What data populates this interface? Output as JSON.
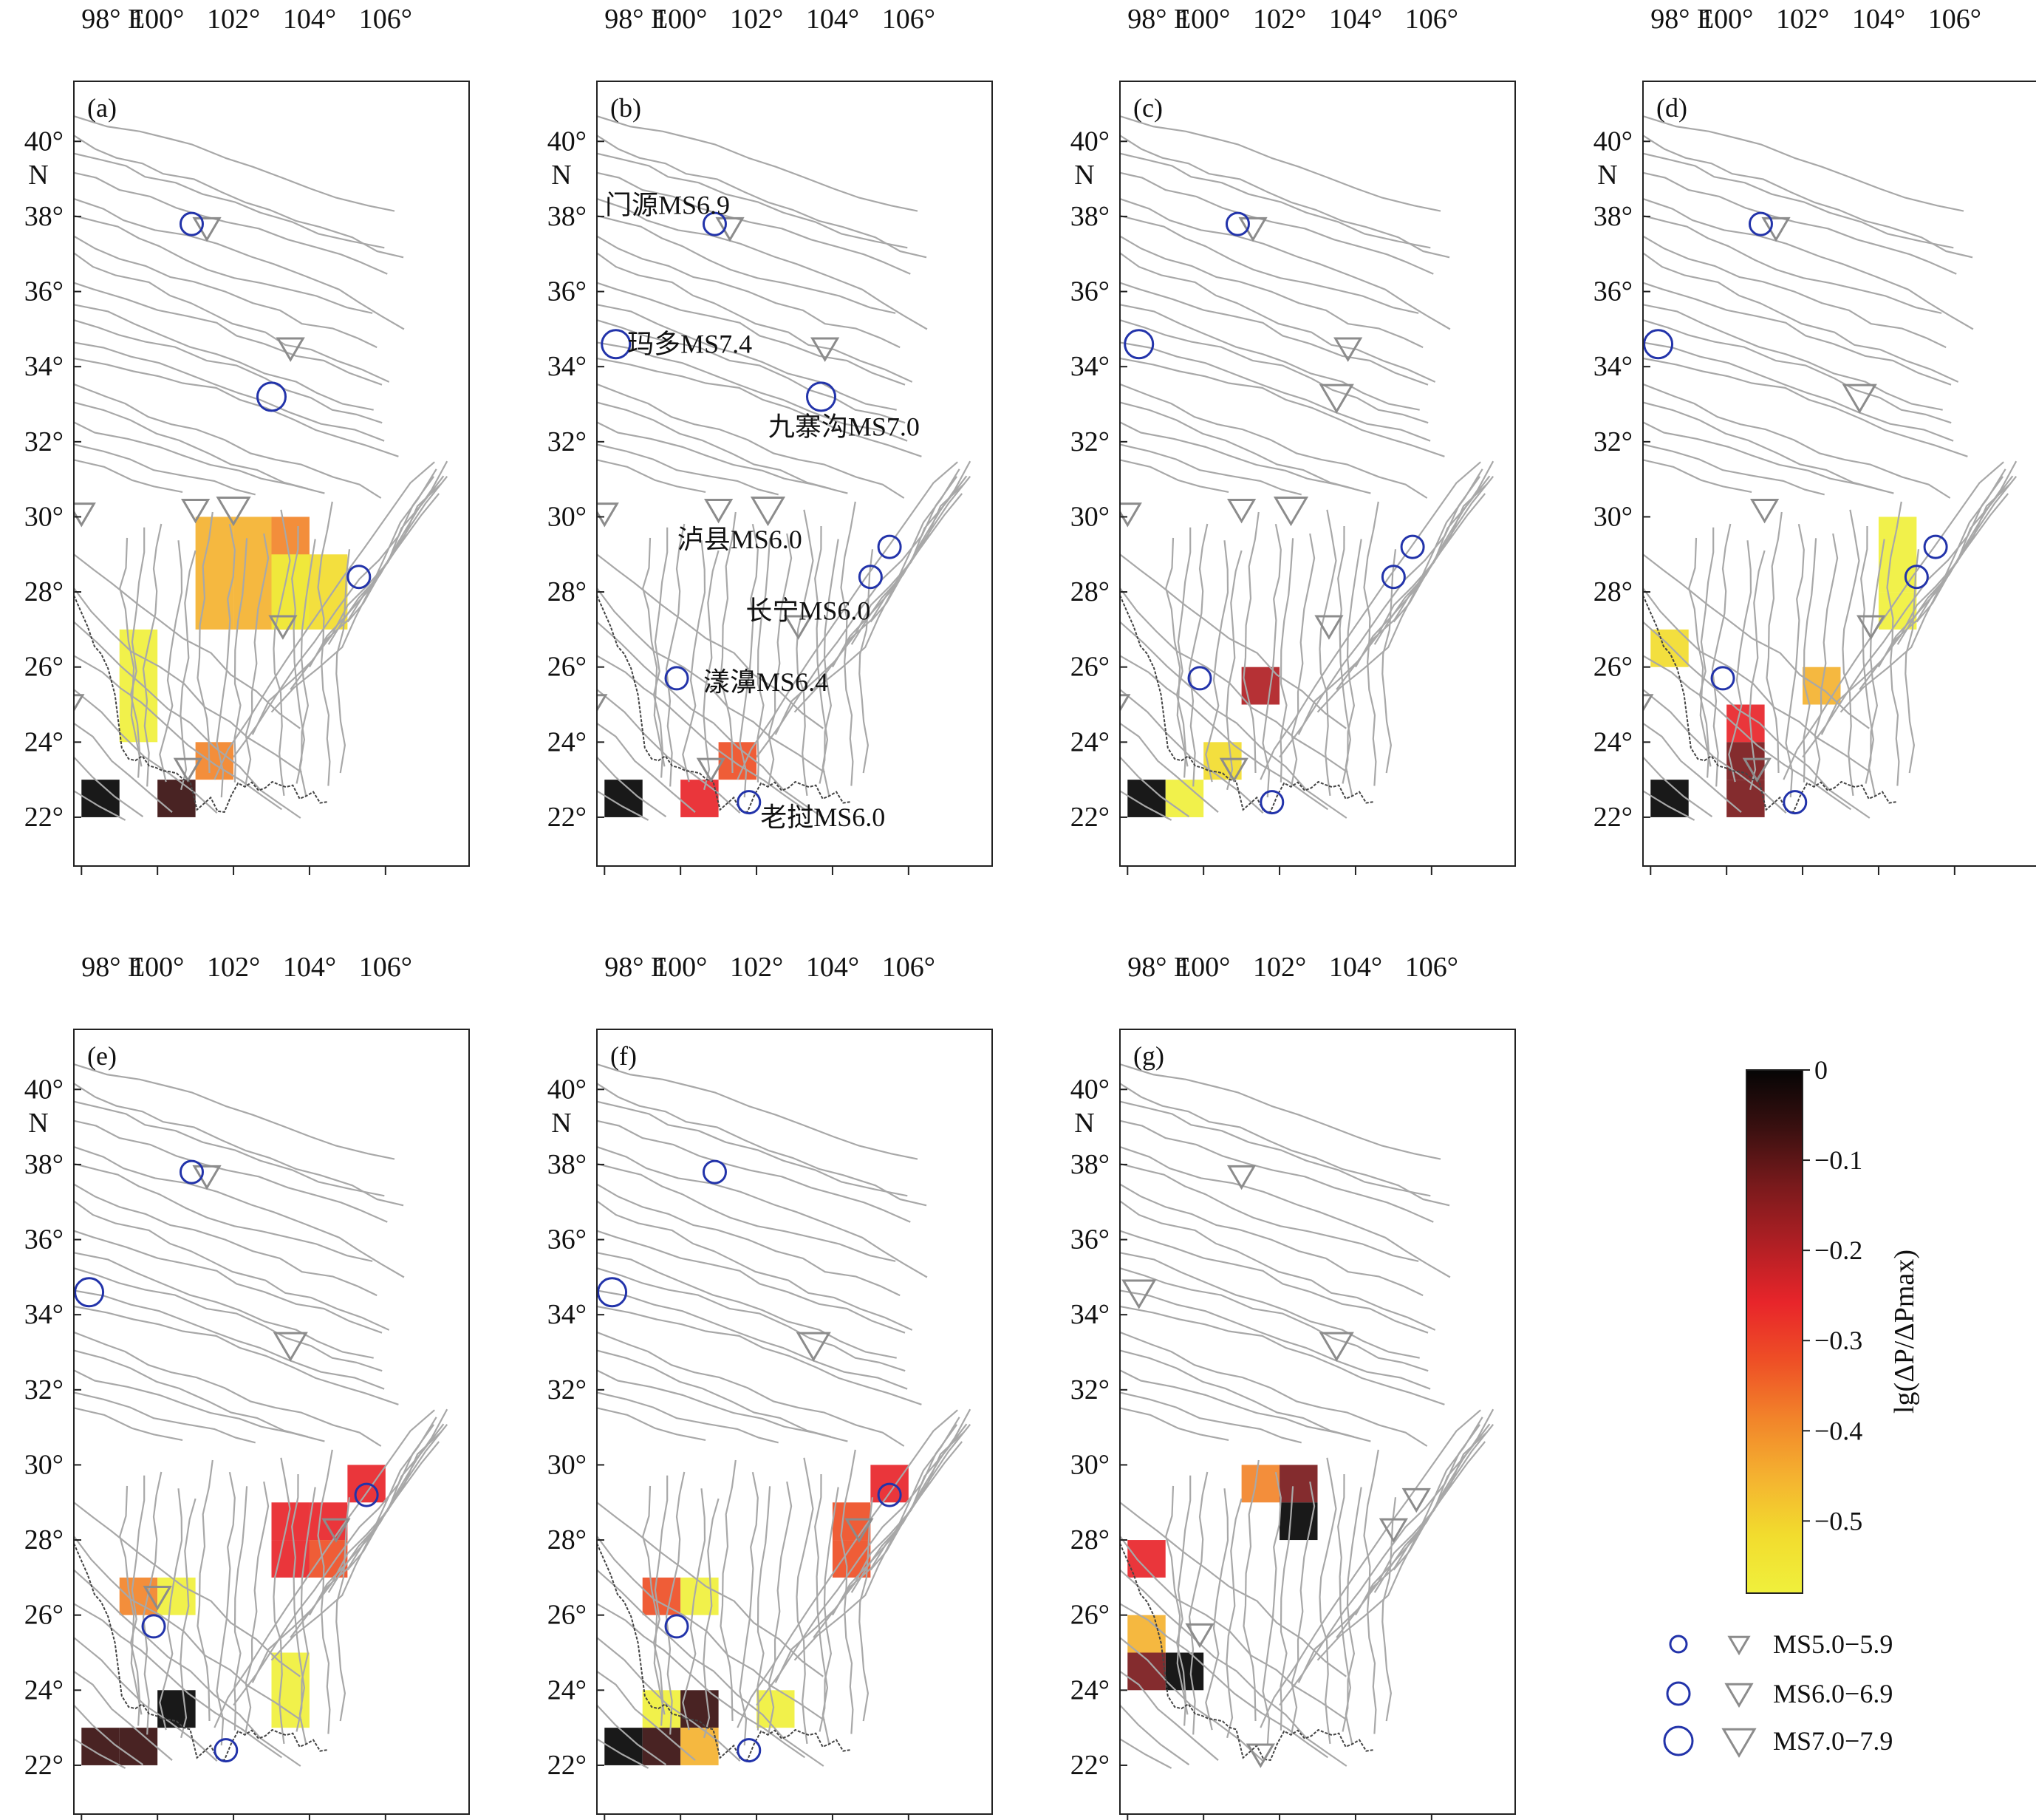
{
  "axis": {
    "lon_ticks": [
      "98° E",
      "100°",
      "102°",
      "104°",
      "106°"
    ],
    "lat_ticks": [
      "22°",
      "24°",
      "26°",
      "28°",
      "30°",
      "32°",
      "34°",
      "36°",
      "38°",
      "40°"
    ],
    "lat_unit": "N"
  },
  "colors": {
    "frame": "#222222",
    "fault": "#a8a8a8",
    "border": "#444444",
    "circle": "#2233aa",
    "triangle": "#8c8c8c",
    "colormap": [
      "#f0f03c",
      "#f2dc2e",
      "#f4b230",
      "#f2842a",
      "#ee4f26",
      "#e8252a",
      "#b01f24",
      "#7a1a1c",
      "#3a1010",
      "#050505"
    ]
  },
  "colorbar": {
    "label": "lg(ΔP/ΔPmax)",
    "ticks": [
      "0",
      "−0.1",
      "−0.2",
      "−0.3",
      "−0.4",
      "−0.5"
    ],
    "min": -0.58,
    "max": 0
  },
  "legend": {
    "rows": [
      "MS5.0−5.9",
      "MS6.0−6.9",
      "MS7.0−7.9"
    ]
  },
  "earthquake_labels": [
    "门源MS6.9",
    "玛多MS7.4",
    "九寨沟MS7.0",
    "泸县MS6.0",
    "长宁MS6.0",
    "漾濞MS6.4",
    "老挝MS6.0"
  ],
  "panels": [
    {
      "label": "(a)",
      "cells": [
        [
          103,
          27,
          29,
          -0.4
        ],
        [
          101,
          27,
          29,
          -0.45
        ],
        [
          102,
          27,
          29,
          -0.48
        ],
        [
          103,
          27,
          28,
          -0.55
        ],
        [
          104,
          27,
          28,
          -0.5
        ],
        [
          99,
          24,
          26,
          -0.55
        ],
        [
          101,
          23,
          23,
          -0.38
        ],
        [
          98,
          22,
          22,
          0
        ],
        [
          100,
          22,
          22,
          -0.08
        ]
      ],
      "circles": [
        [
          103,
          33.2,
          2
        ],
        [
          105.3,
          28.4,
          1
        ],
        [
          100.9,
          37.8,
          1
        ]
      ],
      "triangles": [
        [
          101.3,
          37.7,
          1
        ],
        [
          103.5,
          34.5,
          1
        ],
        [
          101,
          30.2,
          1
        ],
        [
          102,
          30.2,
          2
        ],
        [
          103.3,
          27.1,
          1
        ],
        [
          98,
          30.1,
          1
        ],
        [
          97.7,
          25,
          1
        ],
        [
          100.8,
          23.3,
          1
        ]
      ]
    },
    {
      "label": "(b)",
      "cells": [
        [
          101,
          23,
          23,
          -0.35
        ],
        [
          98,
          22,
          22,
          0
        ],
        [
          100,
          22,
          22,
          -0.25
        ]
      ],
      "circles": [
        [
          100.9,
          37.8,
          1
        ],
        [
          98.3,
          34.6,
          2
        ],
        [
          103.7,
          33.2,
          2
        ],
        [
          105.5,
          29.2,
          1
        ],
        [
          105,
          28.4,
          1
        ],
        [
          99.9,
          25.7,
          1
        ],
        [
          101.8,
          22.4,
          1
        ]
      ],
      "triangles": [
        [
          101.3,
          37.7,
          1
        ],
        [
          103.8,
          34.5,
          1
        ],
        [
          101,
          30.2,
          1
        ],
        [
          102.3,
          30.2,
          2
        ],
        [
          98,
          30.1,
          1
        ],
        [
          103.1,
          27.1,
          1
        ],
        [
          97.7,
          25,
          1
        ],
        [
          100.8,
          23.3,
          1
        ]
      ],
      "labels": [
        [
          0,
          101.3,
          38.3,
          "end"
        ],
        [
          1,
          98.6,
          34.6,
          "start"
        ],
        [
          2,
          104.3,
          32.4,
          "middle"
        ],
        [
          3,
          103.2,
          29.4,
          "end"
        ],
        [
          4,
          105,
          27.5,
          "end"
        ],
        [
          5,
          100.6,
          25.6,
          "start"
        ],
        [
          6,
          102.1,
          22
        ],
        "start"
      ]
    },
    {
      "label": "(c)",
      "cells": [
        [
          101,
          25,
          25,
          -0.2
        ],
        [
          100,
          23,
          23,
          -0.52
        ],
        [
          98,
          22,
          22,
          0
        ],
        [
          99,
          22,
          22,
          -0.58
        ]
      ],
      "circles": [
        [
          100.9,
          37.8,
          1
        ],
        [
          98.3,
          34.6,
          2
        ],
        [
          105.5,
          29.2,
          1
        ],
        [
          105,
          28.4,
          1
        ],
        [
          99.9,
          25.7,
          1
        ],
        [
          101.8,
          22.4,
          1
        ]
      ],
      "triangles": [
        [
          101.3,
          37.7,
          1
        ],
        [
          103.8,
          34.5,
          1
        ],
        [
          103.5,
          33.2,
          2
        ],
        [
          101,
          30.2,
          1
        ],
        [
          102.3,
          30.2,
          2
        ],
        [
          98,
          30.1,
          1
        ],
        [
          103.3,
          27.1,
          1
        ],
        [
          97.7,
          25,
          1
        ],
        [
          100.8,
          23.3,
          1
        ]
      ]
    },
    {
      "label": "(d)",
      "cells": [
        [
          104,
          28,
          29,
          -0.55
        ],
        [
          104,
          27,
          27,
          -0.58
        ],
        [
          98,
          26,
          26,
          -0.52
        ],
        [
          102,
          25,
          25,
          -0.45
        ],
        [
          100,
          24,
          24,
          -0.25
        ],
        [
          100,
          23,
          23,
          -0.15
        ],
        [
          98,
          22,
          22,
          0
        ],
        [
          100,
          22,
          22,
          -0.1
        ]
      ],
      "circles": [
        [
          100.9,
          37.8,
          1
        ],
        [
          98.2,
          34.6,
          2
        ],
        [
          105.5,
          29.2,
          1
        ],
        [
          105,
          28.4,
          1
        ],
        [
          99.9,
          25.7,
          1
        ],
        [
          101.8,
          22.4,
          1
        ]
      ],
      "triangles": [
        [
          101.3,
          37.7,
          1
        ],
        [
          103.5,
          33.2,
          2
        ],
        [
          101,
          30.2,
          1
        ],
        [
          103.8,
          27.1,
          1
        ],
        [
          97.7,
          25,
          1
        ],
        [
          100.8,
          23.3,
          1
        ]
      ]
    },
    {
      "label": "(e)",
      "cells": [
        [
          105,
          29,
          29,
          -0.25
        ],
        [
          103,
          28,
          28,
          -0.28
        ],
        [
          104,
          28,
          28,
          -0.28
        ],
        [
          103,
          27,
          27,
          -0.28
        ],
        [
          104,
          27,
          27,
          -0.3
        ],
        [
          99,
          26,
          26,
          -0.4
        ],
        [
          100,
          26,
          26,
          -0.55
        ],
        [
          103,
          23,
          24,
          -0.58
        ],
        [
          100,
          23,
          23,
          0
        ],
        [
          98,
          22,
          22,
          -0.05
        ],
        [
          99,
          22,
          22,
          -0.05
        ]
      ],
      "circles": [
        [
          100.9,
          37.8,
          1
        ],
        [
          98.2,
          34.6,
          2
        ],
        [
          105.5,
          29.2,
          1
        ],
        [
          99.9,
          25.7,
          1
        ],
        [
          101.8,
          22.4,
          1
        ]
      ],
      "triangles": [
        [
          101.3,
          37.7,
          1
        ],
        [
          103.5,
          33.2,
          2
        ],
        [
          104.7,
          28.3,
          1
        ],
        [
          100,
          26.5,
          1
        ]
      ]
    },
    {
      "label": "(f)",
      "cells": [
        [
          105,
          29,
          29,
          -0.28
        ],
        [
          104,
          28,
          28,
          -0.3
        ],
        [
          104,
          27,
          27,
          -0.3
        ],
        [
          99,
          26,
          26,
          -0.3
        ],
        [
          100,
          26,
          26,
          -0.55
        ],
        [
          99,
          23,
          23,
          -0.55
        ],
        [
          100,
          23,
          23,
          -0.08
        ],
        [
          102,
          23,
          23,
          -0.55
        ],
        [
          98,
          22,
          22,
          0
        ],
        [
          99,
          22,
          22,
          -0.05
        ],
        [
          100,
          22,
          22,
          -0.48
        ]
      ],
      "circles": [
        [
          100.9,
          37.8,
          1
        ],
        [
          98.2,
          34.6,
          2
        ],
        [
          105.5,
          29.2,
          1
        ],
        [
          99.9,
          25.7,
          1
        ],
        [
          101.8,
          22.4,
          1
        ]
      ],
      "triangles": [
        [
          103.5,
          33.2,
          2
        ],
        [
          104.7,
          28.3,
          1
        ]
      ]
    },
    {
      "label": "(g)",
      "cells": [
        [
          101,
          29,
          29,
          -0.4
        ],
        [
          102,
          29,
          29,
          -0.1
        ],
        [
          102,
          28,
          28,
          -0.02
        ],
        [
          98,
          27,
          27,
          -0.25
        ],
        [
          98,
          25,
          25,
          -0.45
        ],
        [
          99,
          24,
          24,
          0
        ],
        [
          98,
          24,
          24,
          -0.15
        ]
      ],
      "circles": [],
      "triangles": [
        [
          101,
          37.7,
          1
        ],
        [
          98.3,
          34.6,
          2
        ],
        [
          103.5,
          33.2,
          2
        ],
        [
          105.6,
          29.1,
          1
        ],
        [
          105,
          28.3,
          1
        ],
        [
          99.9,
          25.5,
          1
        ],
        [
          101.5,
          22.3,
          1
        ]
      ]
    }
  ]
}
